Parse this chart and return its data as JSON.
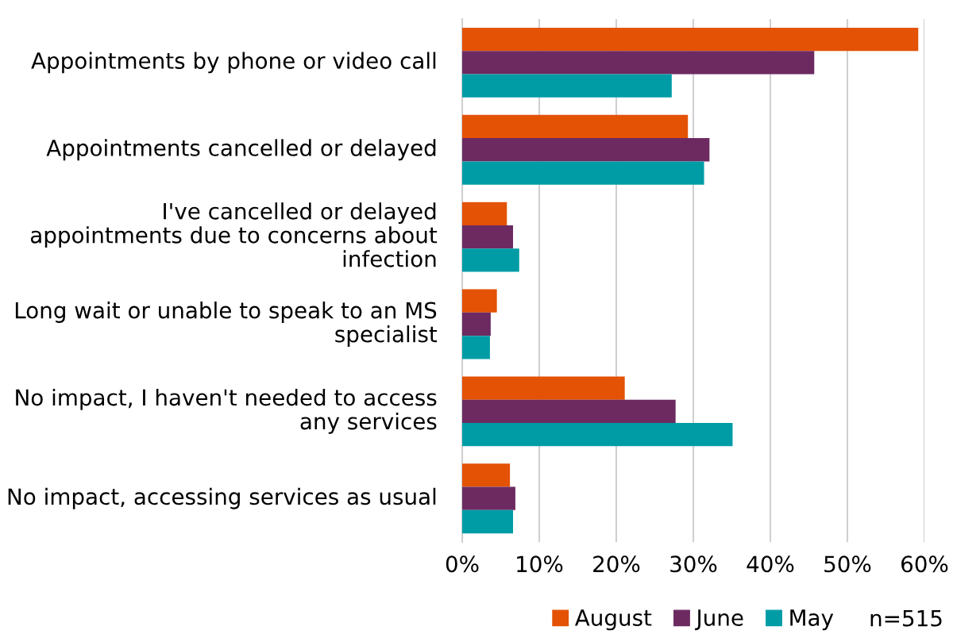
{
  "chart_data": {
    "type": "bar",
    "orientation": "horizontal",
    "categories": [
      "Appointments by phone or video call",
      "Appointments cancelled or delayed",
      "I've cancelled or delayed appointments due to concerns about infection",
      "Long wait or unable to speak to an MS specialist",
      "No impact, I haven't needed to access any services",
      "No impact, accessing services as usual"
    ],
    "series": [
      {
        "name": "August",
        "color": "#e35205",
        "values": [
          59.2,
          29.3,
          5.8,
          4.5,
          21.1,
          6.2
        ]
      },
      {
        "name": "June",
        "color": "#6d2a61",
        "values": [
          45.7,
          32.1,
          6.6,
          3.7,
          27.7,
          6.9
        ]
      },
      {
        "name": "May",
        "color": "#009ca6",
        "values": [
          27.2,
          31.4,
          7.4,
          3.6,
          35.1,
          6.6
        ]
      }
    ],
    "xlim": [
      0,
      60
    ],
    "xticks": [
      {
        "value": 0,
        "label": "0%"
      },
      {
        "value": 10,
        "label": "10%"
      },
      {
        "value": 20,
        "label": "20%"
      },
      {
        "value": 30,
        "label": "30%"
      },
      {
        "value": 40,
        "label": "40%"
      },
      {
        "value": 50,
        "label": "50%"
      },
      {
        "value": 60,
        "label": "60%"
      }
    ],
    "grid": "x",
    "legend": "bottom",
    "annotations": [
      "n=515"
    ]
  }
}
